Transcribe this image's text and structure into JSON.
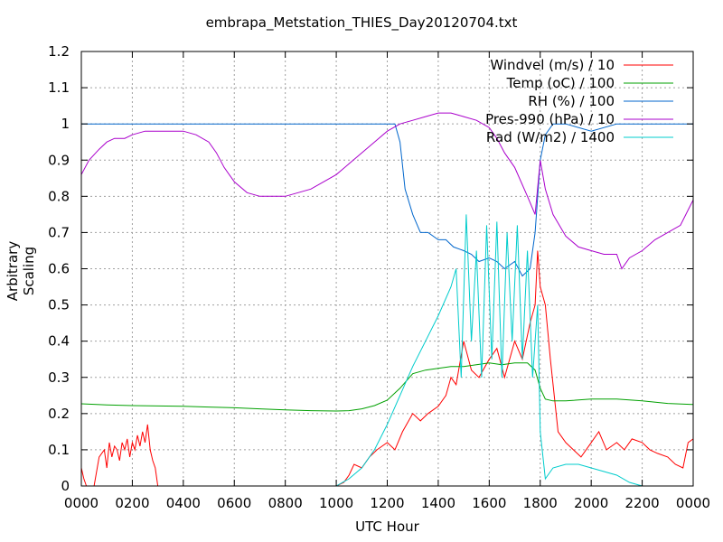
{
  "chart_data": {
    "type": "line",
    "title": "embrapa_Metstation_THIES_Day20120704.txt",
    "xlabel": "UTC Hour",
    "ylabel": "Arbitrary Scaling",
    "xlim": [
      0,
      24
    ],
    "ylim": [
      0,
      1.2
    ],
    "x_ticks": [
      "0000",
      "0200",
      "0400",
      "0600",
      "0800",
      "1000",
      "1200",
      "1400",
      "1600",
      "1800",
      "2000",
      "2200",
      "0000"
    ],
    "y_ticks": [
      "0",
      "0.1",
      "0.2",
      "0.3",
      "0.4",
      "0.5",
      "0.6",
      "0.7",
      "0.8",
      "0.9",
      "1",
      "1.1",
      "1.2"
    ],
    "grid": true,
    "legend": "top-right",
    "series": [
      {
        "name": "Windvel (m/s) / 10",
        "color": "#ff0000",
        "x": [
          0,
          0.1,
          0.2,
          0.3,
          0.5,
          0.7,
          0.9,
          1.0,
          1.1,
          1.2,
          1.3,
          1.4,
          1.5,
          1.6,
          1.7,
          1.8,
          1.9,
          2.0,
          2.1,
          2.2,
          2.3,
          2.4,
          2.5,
          2.6,
          2.7,
          2.8,
          2.9,
          3.0,
          3.2,
          4,
          6,
          8,
          10,
          10.3,
          10.5,
          10.7,
          11,
          11.3,
          11.6,
          12,
          12.3,
          12.6,
          13,
          13.3,
          13.6,
          14,
          14.3,
          14.5,
          14.7,
          15,
          15.3,
          15.6,
          16,
          16.3,
          16.6,
          17,
          17.3,
          17.6,
          17.8,
          17.9,
          18,
          18.2,
          18.4,
          18.7,
          19,
          19.3,
          19.6,
          20,
          20.3,
          20.6,
          21,
          21.3,
          21.6,
          22,
          22.3,
          22.6,
          23,
          23.3,
          23.6,
          23.8,
          24
        ],
        "y": [
          0.05,
          0.02,
          0,
          0,
          0,
          0.08,
          0.1,
          0.05,
          0.12,
          0.08,
          0.11,
          0.1,
          0.07,
          0.12,
          0.1,
          0.13,
          0.08,
          0.12,
          0.1,
          0.14,
          0.11,
          0.15,
          0.12,
          0.17,
          0.1,
          0.07,
          0.05,
          0,
          0,
          0,
          0,
          0,
          0,
          0.01,
          0.03,
          0.06,
          0.05,
          0.08,
          0.1,
          0.12,
          0.1,
          0.15,
          0.2,
          0.18,
          0.2,
          0.22,
          0.25,
          0.3,
          0.28,
          0.4,
          0.32,
          0.3,
          0.35,
          0.38,
          0.3,
          0.4,
          0.35,
          0.45,
          0.5,
          0.65,
          0.55,
          0.5,
          0.35,
          0.15,
          0.12,
          0.1,
          0.08,
          0.12,
          0.15,
          0.1,
          0.12,
          0.1,
          0.13,
          0.12,
          0.1,
          0.09,
          0.08,
          0.06,
          0.05,
          0.12,
          0.13
        ]
      },
      {
        "name": "Temp (oC) / 100",
        "color": "#00a000",
        "x": [
          0,
          1,
          2,
          3,
          4,
          5,
          6,
          7,
          8,
          9,
          10,
          10.5,
          11,
          11.5,
          12,
          12.5,
          13,
          13.5,
          14,
          14.5,
          15,
          15.5,
          16,
          16.5,
          17,
          17.5,
          17.8,
          18,
          18.2,
          18.5,
          19,
          20,
          21,
          22,
          23,
          24
        ],
        "y": [
          0.227,
          0.224,
          0.222,
          0.221,
          0.22,
          0.218,
          0.216,
          0.213,
          0.21,
          0.208,
          0.207,
          0.208,
          0.213,
          0.222,
          0.237,
          0.27,
          0.31,
          0.32,
          0.325,
          0.33,
          0.33,
          0.335,
          0.34,
          0.335,
          0.34,
          0.34,
          0.32,
          0.27,
          0.24,
          0.235,
          0.235,
          0.24,
          0.24,
          0.235,
          0.228,
          0.225
        ]
      },
      {
        "name": "RH (%) / 100",
        "color": "#0066cc",
        "x": [
          0,
          2,
          4,
          6,
          8,
          10,
          11,
          12,
          12.3,
          12.5,
          12.7,
          13,
          13.3,
          13.6,
          14,
          14.3,
          14.6,
          15,
          15.3,
          15.6,
          16,
          16.3,
          16.6,
          17,
          17.3,
          17.6,
          17.8,
          18,
          18.2,
          18.5,
          19,
          20,
          21,
          22,
          23,
          24
        ],
        "y": [
          1,
          1,
          1,
          1,
          1,
          1,
          1,
          1,
          1,
          0.95,
          0.82,
          0.75,
          0.7,
          0.7,
          0.68,
          0.68,
          0.66,
          0.65,
          0.64,
          0.62,
          0.63,
          0.62,
          0.6,
          0.62,
          0.58,
          0.6,
          0.7,
          0.9,
          0.97,
          1,
          1,
          0.98,
          1,
          1,
          1,
          1
        ]
      },
      {
        "name": "Pres-990 (hPa) / 10",
        "color": "#aa00cc",
        "x": [
          0,
          0.3,
          0.7,
          1,
          1.3,
          1.7,
          2,
          2.5,
          3,
          3.5,
          4,
          4.5,
          5,
          5.3,
          5.6,
          6,
          6.5,
          7,
          7.5,
          8,
          8.5,
          9,
          9.5,
          10,
          10.5,
          11,
          11.5,
          12,
          12.5,
          13,
          13.5,
          14,
          14.5,
          15,
          15.5,
          16,
          16.3,
          16.6,
          17,
          17.5,
          17.8,
          18,
          18.2,
          18.5,
          19,
          19.5,
          20,
          20.5,
          21,
          21.2,
          21.5,
          22,
          22.5,
          23,
          23.5,
          24
        ],
        "y": [
          0.86,
          0.9,
          0.93,
          0.95,
          0.96,
          0.96,
          0.97,
          0.98,
          0.98,
          0.98,
          0.98,
          0.97,
          0.95,
          0.92,
          0.88,
          0.84,
          0.81,
          0.8,
          0.8,
          0.8,
          0.81,
          0.82,
          0.84,
          0.86,
          0.89,
          0.92,
          0.95,
          0.98,
          1.0,
          1.01,
          1.02,
          1.03,
          1.03,
          1.02,
          1.01,
          0.99,
          0.96,
          0.92,
          0.88,
          0.8,
          0.75,
          0.9,
          0.82,
          0.75,
          0.69,
          0.66,
          0.65,
          0.64,
          0.64,
          0.6,
          0.63,
          0.65,
          0.68,
          0.7,
          0.72,
          0.79
        ]
      },
      {
        "name": "Rad (W/m2) / 1400",
        "color": "#00cccc",
        "x": [
          10,
          10.5,
          11,
          11.5,
          12,
          12.5,
          13,
          13.5,
          14,
          14.5,
          14.7,
          14.9,
          15.1,
          15.3,
          15.5,
          15.7,
          15.9,
          16.1,
          16.3,
          16.5,
          16.7,
          16.9,
          17.1,
          17.3,
          17.5,
          17.7,
          17.9,
          18,
          18.2,
          18.5,
          19,
          19.5,
          20,
          20.5,
          21,
          21.5,
          22
        ],
        "y": [
          0,
          0.02,
          0.05,
          0.1,
          0.17,
          0.25,
          0.33,
          0.4,
          0.47,
          0.55,
          0.6,
          0.3,
          0.75,
          0.4,
          0.65,
          0.3,
          0.72,
          0.35,
          0.73,
          0.3,
          0.7,
          0.4,
          0.72,
          0.35,
          0.65,
          0.3,
          0.5,
          0.15,
          0.02,
          0.05,
          0.06,
          0.06,
          0.05,
          0.04,
          0.03,
          0.01,
          0
        ]
      }
    ]
  }
}
